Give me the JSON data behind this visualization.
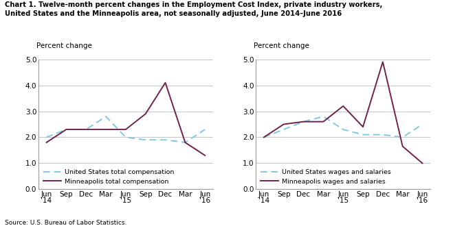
{
  "title_line1": "Chart 1. Twelve-month percent changes in the Employment Cost Index, private industry workers,",
  "title_line2": "United States and the Minneapolis area, not seasonally adjusted, June 2014–June 2016",
  "source": "Source: U.S. Bureau of Labor Statistics.",
  "x_labels": [
    "Jun\n'14",
    "Sep",
    "Dec",
    "Mar",
    "Jun\n'15",
    "Sep",
    "Dec",
    "Mar",
    "Jun\n'16"
  ],
  "x_ticks": [
    0,
    1,
    2,
    3,
    4,
    5,
    6,
    7,
    8
  ],
  "left_us": [
    2.0,
    2.3,
    2.3,
    2.8,
    2.0,
    1.9,
    1.9,
    1.8,
    2.3
  ],
  "left_mpls": [
    1.8,
    2.3,
    2.3,
    2.3,
    2.3,
    2.9,
    4.1,
    1.8,
    1.3
  ],
  "right_us": [
    2.0,
    2.3,
    2.6,
    2.8,
    2.3,
    2.1,
    2.1,
    2.0,
    2.5
  ],
  "right_mpls": [
    2.0,
    2.5,
    2.6,
    2.6,
    3.2,
    2.4,
    4.9,
    1.65,
    1.0
  ],
  "ylim": [
    0.0,
    5.0
  ],
  "yticks": [
    0.0,
    1.0,
    2.0,
    3.0,
    4.0,
    5.0
  ],
  "ylabel": "Percent change",
  "us_color": "#7ec8e8",
  "mpls_color": "#722048",
  "left_legend": [
    "United States total compensation",
    "Minneapolis total compensation"
  ],
  "right_legend": [
    "United States wages and salaries",
    "Minneapolis wages and salaries"
  ],
  "grid_color": "#bbbbbb",
  "spine_color": "#999999"
}
